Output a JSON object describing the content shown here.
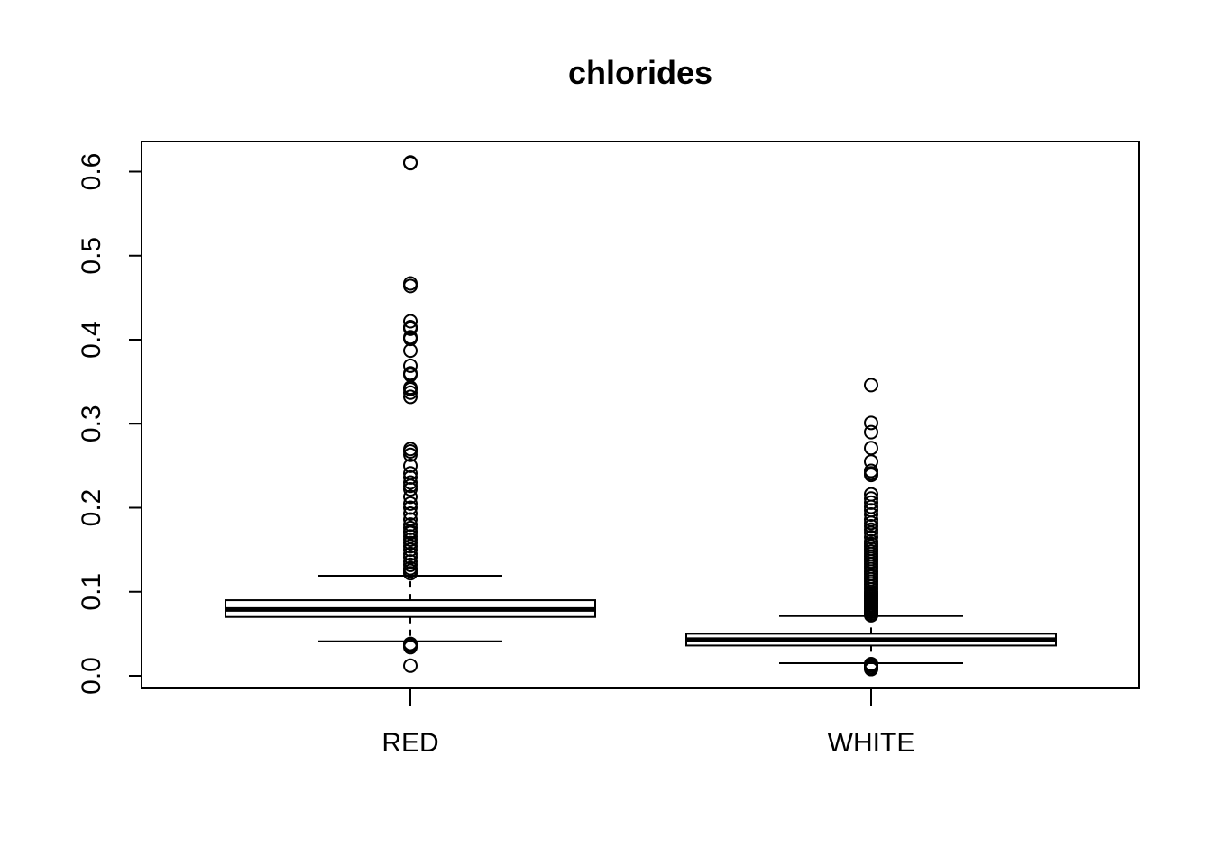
{
  "chart_data": {
    "type": "box",
    "title": "chlorides",
    "xlabel": "",
    "ylabel": "",
    "categories": [
      "RED",
      "WHITE"
    ],
    "ylim": [
      0.0,
      0.6
    ],
    "yticks": [
      "0.0",
      "0.1",
      "0.2",
      "0.3",
      "0.4",
      "0.5",
      "0.6"
    ],
    "ytick_values": [
      0.0,
      0.1,
      0.2,
      0.3,
      0.4,
      0.5,
      0.6
    ],
    "grid": false,
    "series": [
      {
        "category": "RED",
        "whisker_low": 0.041,
        "q1": 0.07,
        "median": 0.079,
        "q3": 0.09,
        "whisker_high": 0.119,
        "outliers": [
          0.012,
          0.034,
          0.036,
          0.038,
          0.122,
          0.125,
          0.128,
          0.132,
          0.136,
          0.141,
          0.145,
          0.15,
          0.154,
          0.158,
          0.162,
          0.166,
          0.17,
          0.172,
          0.176,
          0.18,
          0.186,
          0.193,
          0.2,
          0.205,
          0.213,
          0.222,
          0.226,
          0.23,
          0.236,
          0.241,
          0.25,
          0.263,
          0.267,
          0.27,
          0.332,
          0.337,
          0.341,
          0.343,
          0.358,
          0.36,
          0.369,
          0.387,
          0.401,
          0.403,
          0.413,
          0.414,
          0.415,
          0.422,
          0.464,
          0.467,
          0.61,
          0.611
        ]
      },
      {
        "category": "WHITE",
        "whisker_low": 0.015,
        "q1": 0.036,
        "median": 0.043,
        "q3": 0.05,
        "whisker_high": 0.071,
        "outliers": [
          0.008,
          0.009,
          0.01,
          0.012,
          0.013,
          0.014,
          0.072,
          0.074,
          0.076,
          0.078,
          0.08,
          0.082,
          0.084,
          0.086,
          0.088,
          0.09,
          0.092,
          0.094,
          0.096,
          0.098,
          0.1,
          0.103,
          0.106,
          0.109,
          0.112,
          0.115,
          0.118,
          0.121,
          0.124,
          0.127,
          0.13,
          0.133,
          0.136,
          0.139,
          0.142,
          0.145,
          0.148,
          0.151,
          0.154,
          0.157,
          0.16,
          0.165,
          0.17,
          0.174,
          0.178,
          0.182,
          0.186,
          0.192,
          0.197,
          0.201,
          0.206,
          0.211,
          0.216,
          0.239,
          0.241,
          0.244,
          0.255,
          0.271,
          0.29,
          0.301,
          0.346
        ]
      }
    ]
  }
}
